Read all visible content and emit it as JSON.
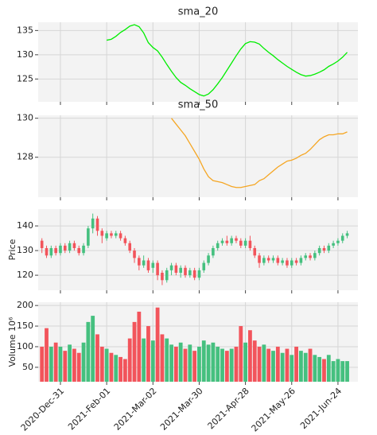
{
  "chart_data": [
    {
      "type": "line",
      "title": "sma_20",
      "color": "#00ee00",
      "ylim": [
        120.3,
        136.7
      ],
      "yticks": [
        125,
        130,
        135
      ],
      "grid": true,
      "values": [
        null,
        null,
        null,
        null,
        null,
        null,
        null,
        null,
        null,
        null,
        null,
        null,
        null,
        null,
        133.0,
        133.2,
        133.8,
        134.6,
        135.2,
        135.9,
        136.2,
        135.8,
        134.5,
        132.5,
        131.5,
        130.8,
        129.5,
        128.0,
        126.6,
        125.3,
        124.3,
        123.7,
        123.0,
        122.4,
        121.8,
        121.5,
        121.9,
        122.8,
        124.0,
        125.3,
        126.8,
        128.3,
        129.8,
        131.2,
        132.3,
        132.7,
        132.6,
        132.2,
        131.3,
        130.5,
        129.8,
        129.0,
        128.3,
        127.6,
        127.0,
        126.4,
        125.9,
        125.6,
        125.7,
        126.0,
        126.4,
        126.9,
        127.6,
        128.1,
        128.7,
        129.5,
        130.5
      ]
    },
    {
      "type": "line",
      "title": "sma_50",
      "color": "#f5a623",
      "ylim": [
        125.95,
        130.15
      ],
      "yticks": [
        128,
        130
      ],
      "grid": true,
      "values": [
        null,
        null,
        null,
        null,
        null,
        null,
        null,
        null,
        null,
        null,
        null,
        null,
        null,
        null,
        null,
        null,
        null,
        null,
        null,
        null,
        null,
        null,
        null,
        null,
        null,
        null,
        null,
        null,
        130.0,
        129.7,
        129.4,
        129.1,
        128.7,
        128.3,
        127.9,
        127.4,
        127.0,
        126.8,
        126.75,
        126.7,
        126.6,
        126.5,
        126.45,
        126.45,
        126.5,
        126.55,
        126.6,
        126.8,
        126.9,
        127.1,
        127.3,
        127.5,
        127.65,
        127.8,
        127.85,
        127.95,
        128.1,
        128.2,
        128.4,
        128.65,
        128.9,
        129.05,
        129.15,
        129.15,
        129.2,
        129.2,
        129.3
      ]
    },
    {
      "type": "candlestick",
      "ylabel": "Price",
      "up_color": "#45c07f",
      "down_color": "#f2545b",
      "ylim": [
        113.9,
        146.8
      ],
      "yticks": [
        120,
        130,
        140
      ],
      "grid": true,
      "open": [
        134,
        131,
        128,
        131,
        129,
        132,
        130,
        133,
        131,
        129,
        132,
        139,
        143,
        138,
        135,
        137,
        136,
        137,
        135,
        133,
        130,
        127,
        124,
        126,
        123,
        125,
        121,
        118,
        122,
        124,
        121,
        123,
        120,
        122,
        119,
        122,
        125,
        128,
        131,
        133,
        134,
        133,
        135,
        134,
        132,
        134,
        131,
        128,
        125,
        127,
        126,
        127,
        125,
        126,
        124,
        126,
        125,
        127,
        128,
        127,
        129,
        131,
        130,
        132,
        133,
        134,
        136
      ],
      "high": [
        135,
        132,
        132,
        132,
        133,
        133,
        134,
        134,
        132,
        133,
        140,
        145,
        144,
        139,
        138,
        138,
        138,
        138,
        136,
        134,
        131,
        128,
        128,
        127,
        126,
        126,
        122,
        123,
        125,
        125,
        124,
        124,
        123,
        123,
        123,
        126,
        129,
        132,
        134,
        135,
        136,
        136,
        136,
        135,
        135,
        136,
        132,
        129,
        128,
        128,
        128,
        128,
        127,
        127,
        127,
        127,
        128,
        129,
        129,
        130,
        132,
        132,
        133,
        134,
        135,
        137,
        138
      ],
      "low": [
        129,
        127,
        127,
        128,
        128,
        129,
        129,
        130,
        128,
        128,
        131,
        137,
        136,
        133,
        134,
        135,
        135,
        134,
        132,
        129,
        125,
        122,
        123,
        121,
        121,
        118,
        116,
        117,
        120,
        120,
        119,
        119,
        119,
        118,
        118,
        121,
        124,
        127,
        130,
        132,
        132,
        132,
        133,
        131,
        131,
        130,
        127,
        123,
        124,
        125,
        125,
        124,
        124,
        123,
        123,
        124,
        124,
        126,
        126,
        126,
        128,
        129,
        129,
        131,
        132,
        133,
        135
      ],
      "close": [
        131,
        128,
        131,
        129,
        132,
        130,
        133,
        131,
        129,
        132,
        139,
        143,
        138,
        136,
        137,
        136,
        137,
        135,
        133,
        130,
        127,
        124,
        126,
        122,
        125,
        120,
        118,
        122,
        124,
        121,
        123,
        120,
        122,
        119,
        122,
        125,
        128,
        131,
        133,
        134,
        133,
        135,
        134,
        132,
        134,
        131,
        128,
        125,
        127,
        126,
        127,
        125,
        126,
        124,
        126,
        125,
        127,
        128,
        127,
        129,
        131,
        130,
        132,
        133,
        134,
        136,
        137
      ]
    },
    {
      "type": "bar",
      "ylabel": "Volume 10⁶",
      "ylim": [
        15,
        208
      ],
      "yticks": [
        50,
        100,
        150,
        200
      ],
      "grid": true,
      "values": [
        100,
        145,
        100,
        110,
        100,
        90,
        105,
        95,
        85,
        110,
        160,
        175,
        130,
        100,
        95,
        85,
        80,
        75,
        70,
        120,
        160,
        185,
        120,
        150,
        115,
        195,
        130,
        120,
        105,
        100,
        110,
        95,
        105,
        90,
        100,
        115,
        105,
        110,
        100,
        95,
        90,
        95,
        100,
        150,
        110,
        140,
        115,
        100,
        105,
        95,
        90,
        100,
        85,
        95,
        80,
        100,
        90,
        85,
        95,
        80,
        75,
        70,
        80,
        65,
        70,
        65,
        65
      ],
      "x": [
        "2020-Dec-18",
        "2020-Dec-22",
        "2020-Dec-24",
        "2020-Dec-29",
        "2020-Dec-31",
        "2021-Jan-05",
        "2021-Jan-07",
        "2021-Jan-11",
        "2021-Jan-13",
        "2021-Jan-15",
        "2021-Jan-20",
        "2021-Jan-22",
        "2021-Jan-26",
        "2021-Jan-28",
        "2021-Feb-01",
        "2021-Feb-03",
        "2021-Feb-05",
        "2021-Feb-09",
        "2021-Feb-11",
        "2021-Feb-16",
        "2021-Feb-18",
        "2021-Feb-22",
        "2021-Feb-24",
        "2021-Feb-26",
        "2021-Mar-02",
        "2021-Mar-04",
        "2021-Mar-08",
        "2021-Mar-10",
        "2021-Mar-12",
        "2021-Mar-16",
        "2021-Mar-18",
        "2021-Mar-22",
        "2021-Mar-24",
        "2021-Mar-26",
        "2021-Mar-30",
        "2021-Apr-01",
        "2021-Apr-06",
        "2021-Apr-08",
        "2021-Apr-12",
        "2021-Apr-14",
        "2021-Apr-16",
        "2021-Apr-20",
        "2021-Apr-22",
        "2021-Apr-26",
        "2021-Apr-28",
        "2021-Apr-30",
        "2021-May-04",
        "2021-May-06",
        "2021-May-10",
        "2021-May-12",
        "2021-May-14",
        "2021-May-18",
        "2021-May-20",
        "2021-May-24",
        "2021-May-26",
        "2021-May-28",
        "2021-Jun-02",
        "2021-Jun-04",
        "2021-Jun-08",
        "2021-Jun-10",
        "2021-Jun-14",
        "2021-Jun-16",
        "2021-Jun-18",
        "2021-Jun-22",
        "2021-Jun-24",
        "2021-Jun-28",
        "2021-Jun-30"
      ],
      "xticks": [
        "2020-Dec-31",
        "2021-Feb-01",
        "2021-Mar-02",
        "2021-Mar-30",
        "2021-Apr-28",
        "2021-May-26",
        "2021-Jun-24"
      ]
    }
  ]
}
